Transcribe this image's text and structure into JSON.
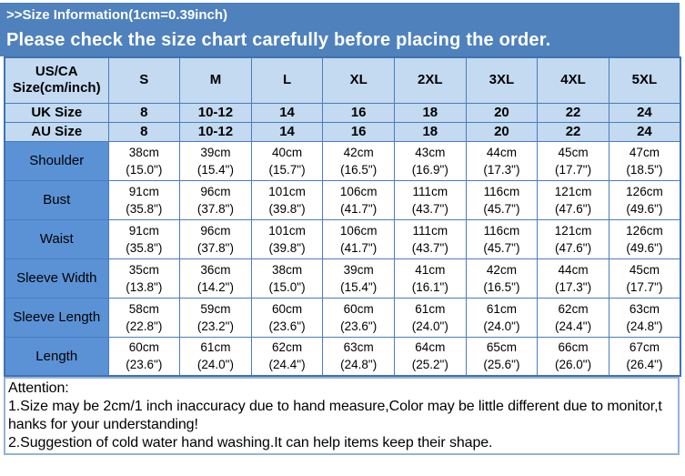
{
  "banner": {
    "size_info_title": ">>Size Information(1cm=0.39inch)",
    "warning": "Please check the size chart carefully before placing the order."
  },
  "table": {
    "corner_label": "US/CA Size(cm/inch)",
    "size_columns": [
      "S",
      "M",
      "L",
      "XL",
      "2XL",
      "3XL",
      "4XL",
      "5XL"
    ],
    "conversion_rows": [
      {
        "label": "UK Size",
        "values": [
          "8",
          "10-12",
          "14",
          "16",
          "18",
          "20",
          "22",
          "24"
        ]
      },
      {
        "label": "AU Size",
        "values": [
          "8",
          "10-12",
          "14",
          "16",
          "18",
          "20",
          "22",
          "24"
        ]
      }
    ],
    "measurement_rows": [
      {
        "label": "Shoulder",
        "cells": [
          {
            "cm": "38cm",
            "inch": "(15.0\")"
          },
          {
            "cm": "39cm",
            "inch": "(15.4\")"
          },
          {
            "cm": "40cm",
            "inch": "(15.7\")"
          },
          {
            "cm": "42cm",
            "inch": "(16.5\")"
          },
          {
            "cm": "43cm",
            "inch": "(16.9\")"
          },
          {
            "cm": "44cm",
            "inch": "(17.3\")"
          },
          {
            "cm": "45cm",
            "inch": "(17.7\")"
          },
          {
            "cm": "47cm",
            "inch": "(18.5\")"
          }
        ]
      },
      {
        "label": "Bust",
        "cells": [
          {
            "cm": "91cm",
            "inch": "(35.8\")"
          },
          {
            "cm": "96cm",
            "inch": "(37.8\")"
          },
          {
            "cm": "101cm",
            "inch": "(39.8\")"
          },
          {
            "cm": "106cm",
            "inch": "(41.7\")"
          },
          {
            "cm": "111cm",
            "inch": "(43.7\")"
          },
          {
            "cm": "116cm",
            "inch": "(45.7\")"
          },
          {
            "cm": "121cm",
            "inch": "(47.6\")"
          },
          {
            "cm": "126cm",
            "inch": "(49.6\")"
          }
        ]
      },
      {
        "label": "Waist",
        "cells": [
          {
            "cm": "91cm",
            "inch": "(35.8\")"
          },
          {
            "cm": "96cm",
            "inch": "(37.8\")"
          },
          {
            "cm": "101cm",
            "inch": "(39.8\")"
          },
          {
            "cm": "106cm",
            "inch": "(41.7\")"
          },
          {
            "cm": "111cm",
            "inch": "(43.7\")"
          },
          {
            "cm": "116cm",
            "inch": "(45.7\")"
          },
          {
            "cm": "121cm",
            "inch": "(47.6\")"
          },
          {
            "cm": "126cm",
            "inch": "(49.6\")"
          }
        ]
      },
      {
        "label": "Sleeve Width",
        "cells": [
          {
            "cm": "35cm",
            "inch": "(13.8\")"
          },
          {
            "cm": "36cm",
            "inch": "(14.2\")"
          },
          {
            "cm": "38cm",
            "inch": "(15.0\")"
          },
          {
            "cm": "39cm",
            "inch": "(15.4\")"
          },
          {
            "cm": "41cm",
            "inch": "(16.1\")"
          },
          {
            "cm": "42cm",
            "inch": "(16.5\")"
          },
          {
            "cm": "44cm",
            "inch": "(17.3\")"
          },
          {
            "cm": "45cm",
            "inch": "(17.7\")"
          }
        ]
      },
      {
        "label": "Sleeve Length",
        "cells": [
          {
            "cm": "58cm",
            "inch": "(22.8\")"
          },
          {
            "cm": "59cm",
            "inch": "(23.2\")"
          },
          {
            "cm": "60cm",
            "inch": "(23.6\")"
          },
          {
            "cm": "60cm",
            "inch": "(23.6\")"
          },
          {
            "cm": "61cm",
            "inch": "(24.0\")"
          },
          {
            "cm": "61cm",
            "inch": "(24.0\")"
          },
          {
            "cm": "62cm",
            "inch": "(24.4\")"
          },
          {
            "cm": "63cm",
            "inch": "(24.8\")"
          }
        ]
      },
      {
        "label": "Length",
        "cells": [
          {
            "cm": "60cm",
            "inch": "(23.6\")"
          },
          {
            "cm": "61cm",
            "inch": "(24.0\")"
          },
          {
            "cm": "62cm",
            "inch": "(24.4\")"
          },
          {
            "cm": "63cm",
            "inch": "(24.8\")"
          },
          {
            "cm": "64cm",
            "inch": "(25.2\")"
          },
          {
            "cm": "65cm",
            "inch": "(25.6\")"
          },
          {
            "cm": "66cm",
            "inch": "(26.0\")"
          },
          {
            "cm": "67cm",
            "inch": "(26.4\")"
          }
        ]
      }
    ]
  },
  "attention": {
    "title": "Attention:",
    "lines": [
      "1.Size may be 2cm/1 inch inaccuracy due to hand measure,Color may be little different due to monitor,t",
      "hanks for your understanding!",
      "2.Suggestion of cold water hand washing.It can help items keep their shape."
    ]
  },
  "colors": {
    "banner_bg": "#4f81bd",
    "head_bg": "#c3daf0",
    "rowhead_bg": "#5b92d6",
    "grid": "#4a7cc0",
    "border_dark": "#3f72b4",
    "attn_border": "#95b3d7",
    "banner_text": "#ffffff",
    "table_text": "#000000"
  }
}
